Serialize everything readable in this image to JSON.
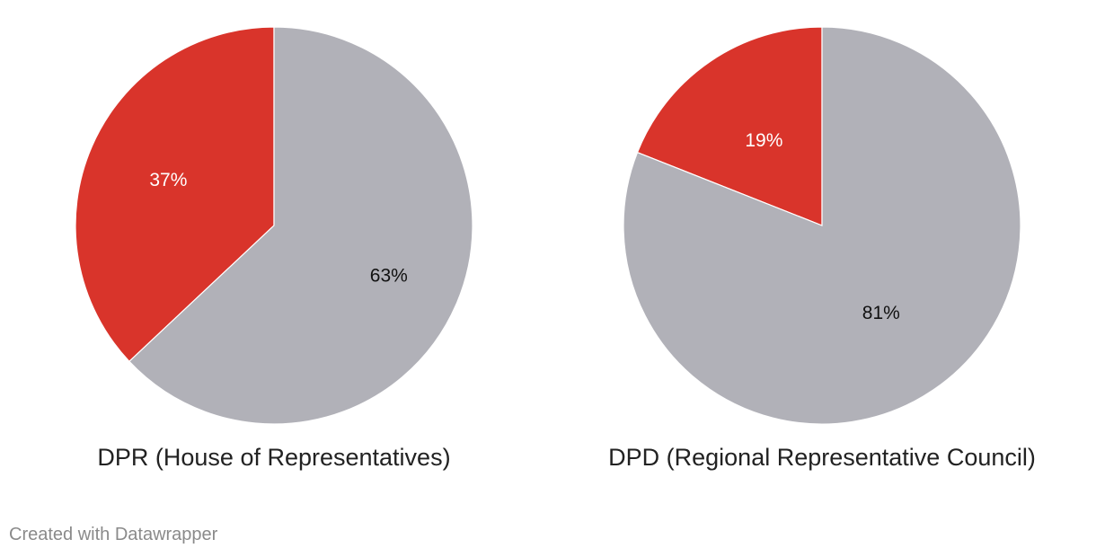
{
  "chart_data": [
    {
      "type": "pie",
      "title": "DPR (House of Representatives)",
      "slices": [
        {
          "value": 37,
          "label": "37%",
          "color": "#d9342b",
          "label_color": "#ffffff"
        },
        {
          "value": 63,
          "label": "63%",
          "color": "#b1b1b8",
          "label_color": "#111111"
        }
      ]
    },
    {
      "type": "pie",
      "title": "DPD (Regional Representative Council)",
      "slices": [
        {
          "value": 19,
          "label": "19%",
          "color": "#d9342b",
          "label_color": "#ffffff"
        },
        {
          "value": 81,
          "label": "81%",
          "color": "#b1b1b8",
          "label_color": "#111111"
        }
      ]
    }
  ],
  "footer": {
    "credit": "Created with Datawrapper"
  }
}
